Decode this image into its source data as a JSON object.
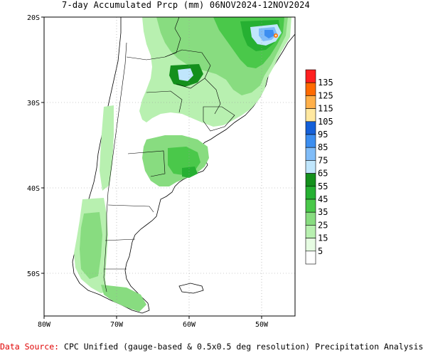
{
  "header": {
    "title": "7-day Accumulated Prcp (mm) 06NOV2024-12NOV2024"
  },
  "map": {
    "lat_labels": [
      "20S",
      "30S",
      "40S",
      "50S"
    ],
    "lon_labels": [
      "80W",
      "70W",
      "60W",
      "50W"
    ],
    "colors": {
      "ocean": "#ffffff",
      "frame": "#000000",
      "grid": "#9a9a9a",
      "border": "#000000"
    }
  },
  "legend": {
    "classes": [
      {
        "label": "135",
        "color": "#ff2020"
      },
      {
        "label": "125",
        "color": "#ff6a00"
      },
      {
        "label": "115",
        "color": "#ffb04a"
      },
      {
        "label": "105",
        "color": "#ffe8a0"
      },
      {
        "label": "95",
        "color": "#1560d8"
      },
      {
        "label": "85",
        "color": "#3c8ef0"
      },
      {
        "label": "75",
        "color": "#80bcf8"
      },
      {
        "label": "65",
        "color": "#c0e6fc"
      },
      {
        "label": "55",
        "color": "#14901c"
      },
      {
        "label": "45",
        "color": "#26b032"
      },
      {
        "label": "35",
        "color": "#4ac84a"
      },
      {
        "label": "25",
        "color": "#88dc80"
      },
      {
        "label": "15",
        "color": "#b8f0b0"
      },
      {
        "label": "5",
        "color": "#e6fce2"
      },
      {
        "label": "",
        "color": "#ffffff"
      }
    ]
  },
  "footer": {
    "source_label": "Data Source:",
    "source_text": " CPC Unified (gauge-based & 0.5x0.5 deg resolution) Precipitation Analysis"
  }
}
